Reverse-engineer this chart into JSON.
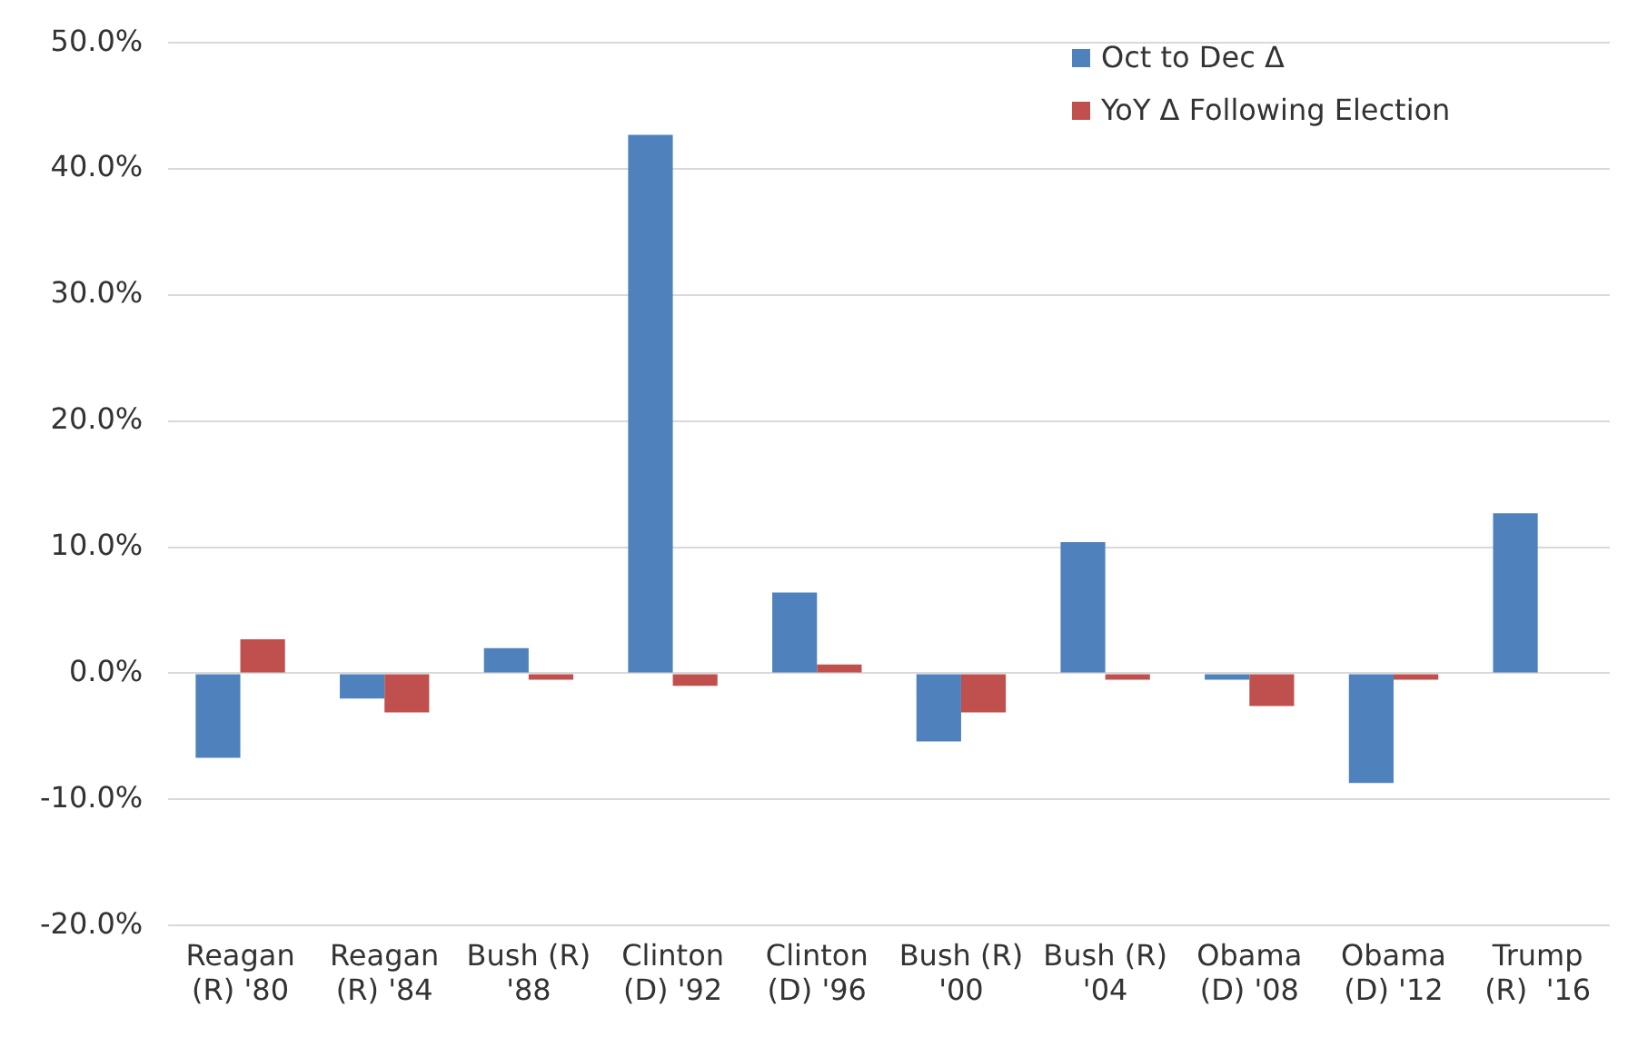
{
  "chart_data": {
    "type": "bar",
    "categories": [
      "Reagan\n(R) '80",
      "Reagan\n(R) '84",
      "Bush (R)\n'88",
      "Clinton\n(D) '92",
      "Clinton\n(D) '96",
      "Bush (R)\n'00",
      "Bush (R)\n'04",
      "Obama\n(D) '08",
      "Obama\n(D) '12",
      "Trump\n(R)  '16"
    ],
    "series": [
      {
        "name": "Oct to Dec Δ",
        "color": "#4f81bd",
        "values": [
          -6.7,
          -2.0,
          2.0,
          42.7,
          6.4,
          -5.4,
          10.4,
          -0.5,
          -8.7,
          12.7
        ]
      },
      {
        "name": "YoY Δ Following Election",
        "color": "#c0504d",
        "values": [
          2.7,
          -3.1,
          -0.5,
          -1.0,
          0.7,
          -3.1,
          -0.5,
          -2.6,
          -0.5,
          null
        ]
      }
    ],
    "ylim": [
      -20,
      50
    ],
    "yticks": [
      {
        "value": -20,
        "label": "-20.0%"
      },
      {
        "value": -10,
        "label": "-10.0%"
      },
      {
        "value": 0,
        "label": "0.0%"
      },
      {
        "value": 10,
        "label": "10.0%"
      },
      {
        "value": 20,
        "label": "20.0%"
      },
      {
        "value": 30,
        "label": "30.0%"
      },
      {
        "value": 40,
        "label": "40.0%"
      },
      {
        "value": 50,
        "label": "50.0%"
      }
    ],
    "grid": "y",
    "legend": "top right"
  }
}
